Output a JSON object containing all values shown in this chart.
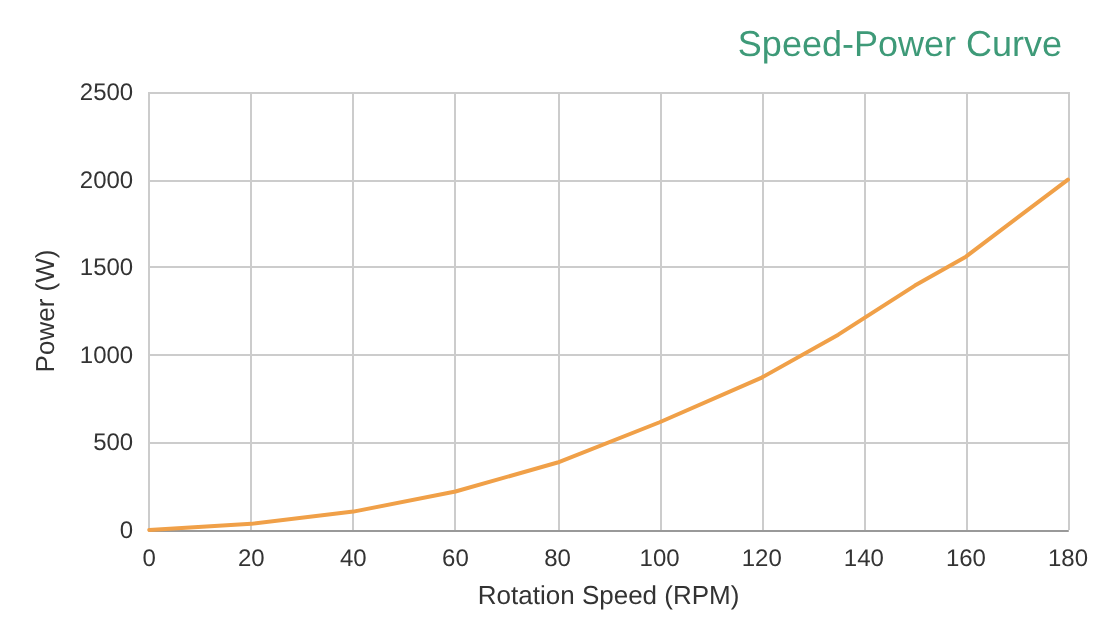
{
  "chart_data": {
    "type": "line",
    "title": "Speed-Power Curve",
    "xlabel": "Rotation Speed (RPM)",
    "ylabel": "Power (W)",
    "x": [
      0,
      20,
      40,
      60,
      80,
      100,
      120,
      135,
      150,
      160,
      180
    ],
    "series": [
      {
        "color": "#f0a048",
        "values": [
          0,
          35,
          105,
          220,
          385,
          615,
          870,
          1115,
          1395,
          1560,
          2000
        ]
      }
    ],
    "xlim": [
      0,
      180
    ],
    "xticks": [
      0,
      20,
      40,
      60,
      80,
      100,
      120,
      140,
      160,
      180
    ],
    "ylim": [
      0,
      2500
    ],
    "yticks": [
      0,
      500,
      1000,
      1500,
      2000,
      2500
    ],
    "grid": true,
    "marker": "none",
    "line_style": "solid"
  }
}
